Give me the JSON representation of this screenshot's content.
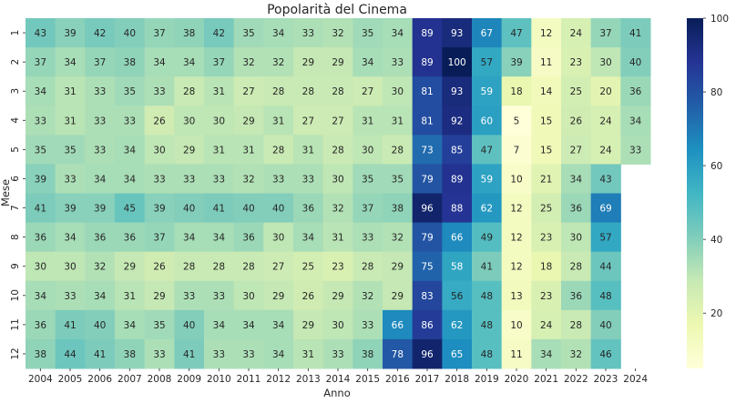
{
  "chart_data": {
    "type": "heatmap",
    "title": "Popolarità del Cinema",
    "xlabel": "Anno",
    "ylabel": "Mese",
    "x": [
      "2004",
      "2005",
      "2006",
      "2007",
      "2008",
      "2009",
      "2010",
      "2011",
      "2012",
      "2013",
      "2014",
      "2015",
      "2016",
      "2017",
      "2018",
      "2019",
      "2020",
      "2021",
      "2022",
      "2023",
      "2024"
    ],
    "y": [
      "1",
      "2",
      "3",
      "4",
      "5",
      "6",
      "7",
      "8",
      "9",
      "10",
      "11",
      "12"
    ],
    "values": [
      [
        43,
        39,
        42,
        40,
        37,
        38,
        42,
        35,
        34,
        33,
        32,
        35,
        34,
        89,
        93,
        67,
        47,
        12,
        24,
        37,
        41
      ],
      [
        37,
        34,
        37,
        38,
        34,
        34,
        37,
        32,
        32,
        29,
        29,
        34,
        33,
        89,
        100,
        57,
        39,
        11,
        23,
        30,
        40
      ],
      [
        34,
        31,
        33,
        35,
        33,
        28,
        31,
        27,
        28,
        28,
        28,
        27,
        30,
        81,
        93,
        59,
        18,
        14,
        25,
        20,
        36
      ],
      [
        33,
        31,
        33,
        33,
        26,
        30,
        30,
        29,
        31,
        27,
        27,
        31,
        31,
        81,
        92,
        60,
        5,
        15,
        26,
        24,
        34
      ],
      [
        35,
        35,
        33,
        34,
        30,
        29,
        31,
        31,
        28,
        31,
        28,
        30,
        28,
        73,
        85,
        47,
        7,
        15,
        27,
        24,
        33
      ],
      [
        39,
        33,
        34,
        34,
        33,
        33,
        33,
        32,
        33,
        33,
        30,
        35,
        35,
        79,
        89,
        59,
        10,
        21,
        34,
        43,
        null
      ],
      [
        41,
        39,
        39,
        45,
        39,
        40,
        41,
        40,
        40,
        36,
        32,
        37,
        38,
        96,
        88,
        62,
        12,
        25,
        36,
        69,
        null
      ],
      [
        36,
        34,
        36,
        36,
        37,
        34,
        34,
        36,
        30,
        34,
        31,
        33,
        32,
        79,
        66,
        49,
        12,
        23,
        30,
        57,
        null
      ],
      [
        30,
        30,
        32,
        29,
        26,
        28,
        28,
        28,
        27,
        25,
        23,
        28,
        29,
        75,
        58,
        41,
        12,
        18,
        28,
        44,
        null
      ],
      [
        34,
        33,
        34,
        31,
        29,
        33,
        33,
        30,
        29,
        26,
        29,
        32,
        29,
        83,
        56,
        48,
        13,
        23,
        36,
        48,
        null
      ],
      [
        36,
        41,
        40,
        34,
        35,
        40,
        34,
        34,
        34,
        29,
        30,
        33,
        66,
        86,
        62,
        48,
        10,
        24,
        28,
        40,
        null
      ],
      [
        38,
        44,
        41,
        38,
        33,
        41,
        33,
        33,
        34,
        31,
        33,
        38,
        78,
        96,
        65,
        48,
        11,
        34,
        32,
        46,
        null
      ]
    ],
    "colorbar": {
      "colormap": "YlGnBu",
      "range": [
        5,
        100
      ],
      "ticks": [
        20,
        40,
        60,
        80,
        100
      ]
    }
  }
}
